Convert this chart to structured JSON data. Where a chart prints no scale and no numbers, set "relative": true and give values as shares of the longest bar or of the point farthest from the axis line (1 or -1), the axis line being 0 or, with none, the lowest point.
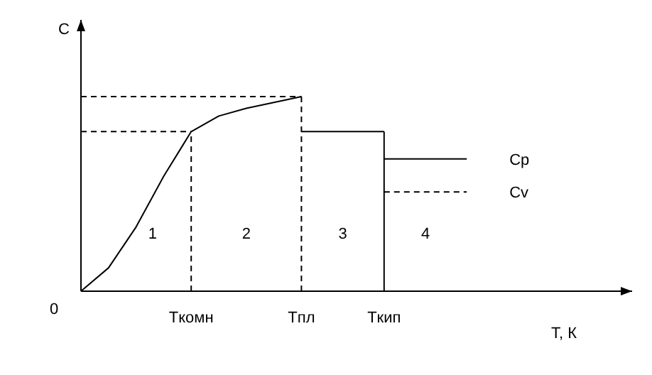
{
  "chart_data": {
    "type": "line",
    "relative": true,
    "xlabel": "T, К",
    "ylabel": "C",
    "categories": [
      null,
      null,
      null,
      null,
      "Tкомн",
      null,
      null,
      null,
      "Tпл",
      null,
      null,
      "Tкип",
      null,
      null,
      null,
      null,
      null,
      null,
      null,
      null,
      null
    ],
    "series": [
      {
        "color": "#000000",
        "line_style": "solid",
        "values": [
          0,
          0.12,
          0.33,
          0.59,
          0.82,
          0.9,
          0.94,
          0.97,
          1,
          null,
          null,
          null,
          null,
          null,
          null,
          null,
          null,
          null,
          null,
          null,
          null
        ]
      },
      {
        "color": "#000000",
        "line_style": "solid",
        "values": [
          null,
          null,
          null,
          null,
          null,
          null,
          null,
          null,
          0.82,
          0.82,
          0.82,
          0.82,
          null,
          null,
          null,
          null,
          null,
          null,
          null,
          null,
          null
        ]
      },
      {
        "name": "Cp",
        "color": "#000000",
        "line_style": "solid",
        "values": [
          null,
          null,
          null,
          null,
          null,
          null,
          null,
          null,
          null,
          null,
          null,
          0.68,
          0.68,
          0.68,
          0.68,
          null,
          null,
          null,
          null,
          null,
          null
        ]
      },
      {
        "name": "Cv",
        "color": "#000000",
        "line_style": "dashed",
        "values": [
          null,
          null,
          null,
          null,
          null,
          null,
          null,
          null,
          null,
          null,
          null,
          0.51,
          0.51,
          0.51,
          0.51,
          null,
          null,
          null,
          null,
          null,
          null
        ]
      }
    ],
    "ref_lines": [
      {
        "axis": "x",
        "value": "Tкомн",
        "color": "#000000",
        "line_style": "dashed"
      },
      {
        "axis": "x",
        "value": "Tпл",
        "color": "#000000",
        "line_style": "dashed"
      },
      {
        "axis": "x",
        "value": "Tкип",
        "color": "#000000",
        "line_style": "solid"
      },
      {
        "axis": "y",
        "value": 1,
        "color": "#000000",
        "line_style": "dashed"
      },
      {
        "axis": "y",
        "value": 0.82,
        "color": "#000000",
        "line_style": "dashed"
      }
    ],
    "annotations": [
      "0",
      "1",
      "2",
      "3",
      "4"
    ]
  }
}
